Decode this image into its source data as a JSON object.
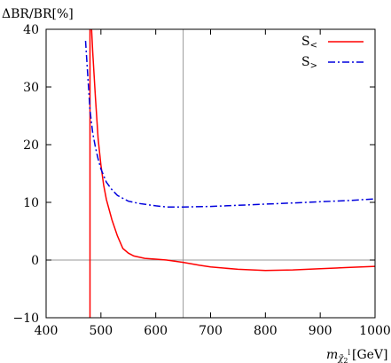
{
  "chart_data": {
    "type": "line",
    "title": "",
    "ylabel": "ΔBR/BR[%]",
    "xlabel": {
      "main": "m",
      "sub": "χ̃",
      "sub_index": "2",
      "sup": "l",
      "unit": "[GeV]"
    },
    "xlim": [
      400,
      1000
    ],
    "ylim": [
      -10,
      40
    ],
    "x_ticks": [
      "400",
      "500",
      "600",
      "700",
      "800",
      "900",
      "1000"
    ],
    "y_ticks": [
      "−10",
      "0",
      "10",
      "20",
      "30",
      "40"
    ],
    "x_tick_values": [
      400,
      500,
      600,
      700,
      800,
      900,
      1000
    ],
    "y_tick_values": [
      -10,
      0,
      10,
      20,
      30,
      40
    ],
    "grid": false,
    "legend_position": "top-right",
    "reference_lines": {
      "horizontal_y": 0,
      "vertical_x": 650,
      "color": "#9a9a9a"
    },
    "series": [
      {
        "name": "S",
        "name_sub": "<",
        "color": "#ff0000",
        "style": "solid",
        "segments": [
          {
            "x": [
              480,
              480
            ],
            "y": [
              -10,
              40
            ]
          },
          {
            "x": [
              483,
              485,
              490,
              495,
              500,
              505,
              510,
              520,
              530,
              540,
              550,
              560,
              580,
              600,
              620,
              650,
              680,
              700,
              750,
              800,
              850,
              900,
              950,
              1000
            ],
            "y": [
              40,
              36,
              28,
              21,
              16.5,
              13,
              10.5,
              7,
              4.2,
              2,
              1.2,
              0.7,
              0.3,
              0.15,
              0,
              -0.4,
              -0.9,
              -1.2,
              -1.6,
              -1.8,
              -1.7,
              -1.5,
              -1.3,
              -1.1
            ]
          }
        ]
      },
      {
        "name": "S",
        "name_sub": ">",
        "color": "#0000dd",
        "style": "dashdot",
        "segments": [
          {
            "x": [
              472,
              476,
              480,
              485,
              490,
              495,
              500,
              510,
              520,
              530,
              550,
              570,
              600,
              620,
              650,
              700,
              750,
              800,
              850,
              900,
              950,
              1000
            ],
            "y": [
              38,
              32,
              26,
              22,
              19.5,
              17.5,
              15.8,
              13.5,
              12.2,
              11.2,
              10.2,
              9.8,
              9.4,
              9.2,
              9.2,
              9.3,
              9.5,
              9.7,
              9.9,
              10.1,
              10.3,
              10.6
            ]
          }
        ]
      }
    ]
  }
}
